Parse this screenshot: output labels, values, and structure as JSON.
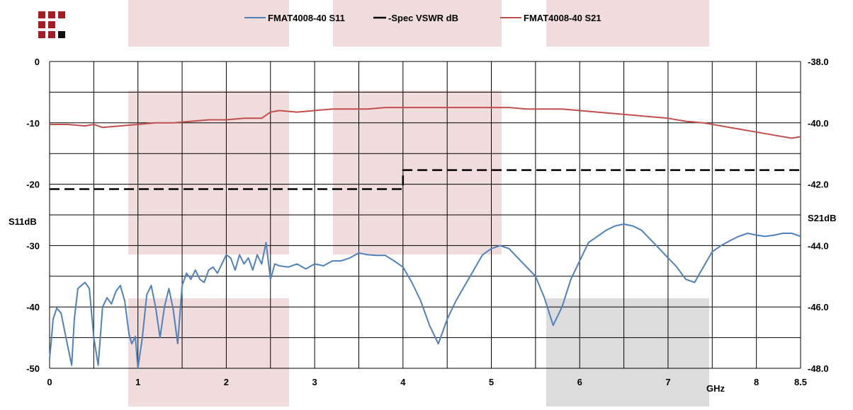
{
  "chart_data": {
    "type": "line",
    "x_unit_label": "GHz",
    "xlim": [
      0,
      8.5
    ],
    "x_ticks": [
      {
        "v": 0,
        "label": "0"
      },
      {
        "v": 1,
        "label": "1"
      },
      {
        "v": 2,
        "label": "2"
      },
      {
        "v": 3,
        "label": "3"
      },
      {
        "v": 4,
        "label": "4"
      },
      {
        "v": 5,
        "label": "5"
      },
      {
        "v": 6,
        "label": "6"
      },
      {
        "v": 7,
        "label": "7"
      },
      {
        "v": 8,
        "label": "8"
      },
      {
        "v": 8.5,
        "label": "8.5"
      }
    ],
    "x_grid_step": 0.5,
    "grid": true,
    "left_axis": {
      "label": "S11dB",
      "ylim": [
        -50,
        0
      ],
      "ticks": [
        {
          "v": 0,
          "label": "0"
        },
        {
          "v": -10,
          "label": "-10"
        },
        {
          "v": -20,
          "label": "-20"
        },
        {
          "v": -30,
          "label": "-30"
        },
        {
          "v": -40,
          "label": "-40"
        },
        {
          "v": -50,
          "label": "-50"
        }
      ],
      "grid_step": 5
    },
    "right_axis": {
      "label": "S21dB",
      "ylim": [
        -48,
        -38
      ],
      "ticks": [
        {
          "v": -38,
          "label": "-38.0"
        },
        {
          "v": -40,
          "label": "-40.0"
        },
        {
          "v": -42,
          "label": "-42.0"
        },
        {
          "v": -44,
          "label": "-44.0"
        },
        {
          "v": -46,
          "label": "-46.0"
        },
        {
          "v": -48,
          "label": "-48.0"
        }
      ]
    },
    "legend_position": "top-center",
    "series": [
      {
        "name": "FMAT4008-40 S11",
        "color": "#4f81bd",
        "axis": "left",
        "width": 2,
        "x": [
          0,
          0.04,
          0.08,
          0.13,
          0.2,
          0.25,
          0.28,
          0.32,
          0.36,
          0.4,
          0.45,
          0.5,
          0.55,
          0.6,
          0.65,
          0.7,
          0.75,
          0.8,
          0.85,
          0.9,
          0.93,
          0.97,
          1.0,
          1.05,
          1.1,
          1.15,
          1.2,
          1.25,
          1.3,
          1.35,
          1.4,
          1.45,
          1.5,
          1.55,
          1.6,
          1.65,
          1.7,
          1.75,
          1.8,
          1.85,
          1.9,
          1.95,
          2.0,
          2.05,
          2.1,
          2.15,
          2.2,
          2.25,
          2.3,
          2.35,
          2.4,
          2.45,
          2.5,
          2.55,
          2.6,
          2.7,
          2.8,
          2.9,
          3.0,
          3.1,
          3.2,
          3.3,
          3.4,
          3.5,
          3.6,
          3.7,
          3.8,
          3.9,
          4.0,
          4.1,
          4.2,
          4.3,
          4.4,
          4.5,
          4.6,
          4.7,
          4.8,
          4.9,
          5.0,
          5.1,
          5.2,
          5.3,
          5.4,
          5.5,
          5.6,
          5.7,
          5.8,
          5.9,
          6.0,
          6.1,
          6.2,
          6.3,
          6.4,
          6.5,
          6.6,
          6.7,
          6.8,
          6.9,
          7.0,
          7.1,
          7.2,
          7.3,
          7.4,
          7.5,
          7.6,
          7.7,
          7.8,
          7.9,
          8.0,
          8.1,
          8.2,
          8.3,
          8.4,
          8.5
        ],
        "values": [
          -48.5,
          -42.0,
          -40.2,
          -41.0,
          -46.0,
          -49.5,
          -42.0,
          -37.0,
          -36.5,
          -36.0,
          -37.0,
          -45.0,
          -49.5,
          -40.0,
          -38.5,
          -39.5,
          -37.5,
          -36.5,
          -39.0,
          -44.5,
          -46.0,
          -44.8,
          -50.0,
          -45.0,
          -38.0,
          -36.5,
          -40.0,
          -45.0,
          -40.0,
          -37.0,
          -40.5,
          -46.0,
          -36.5,
          -34.5,
          -35.5,
          -34.0,
          -35.5,
          -36.0,
          -34.0,
          -33.5,
          -34.5,
          -33.0,
          -31.5,
          -32.0,
          -34.0,
          -31.5,
          -33.0,
          -32.0,
          -34.0,
          -31.5,
          -33.0,
          -29.5,
          -35.5,
          -33.0,
          -33.3,
          -33.5,
          -33.0,
          -33.8,
          -33.0,
          -33.3,
          -32.5,
          -32.5,
          -32.0,
          -31.2,
          -31.5,
          -31.6,
          -31.6,
          -32.5,
          -33.5,
          -36.0,
          -39.0,
          -43.0,
          -46.0,
          -42.0,
          -39.0,
          -36.5,
          -34.0,
          -31.5,
          -30.5,
          -30.0,
          -30.5,
          -32.0,
          -33.5,
          -35.0,
          -38.5,
          -43.0,
          -40.0,
          -35.5,
          -32.5,
          -29.5,
          -28.5,
          -27.5,
          -26.8,
          -26.5,
          -26.8,
          -27.5,
          -29.0,
          -30.5,
          -32.0,
          -33.5,
          -35.5,
          -36.0,
          -33.5,
          -31.0,
          -30.0,
          -29.2,
          -28.5,
          -28.0,
          -28.3,
          -28.5,
          -28.3,
          -28.0,
          -28.0,
          -28.5
        ]
      },
      {
        "name": "-Spec VSWR dB",
        "color": "#000000",
        "axis": "left",
        "dashed": true,
        "width": 2.5,
        "x": [
          0,
          4.0,
          4.0,
          8.5
        ],
        "values": [
          -20.8,
          -20.8,
          -17.7,
          -17.7
        ]
      },
      {
        "name": "FMAT4008-40 S21",
        "color": "#c0504d",
        "axis": "right",
        "width": 2,
        "x": [
          0,
          0.2,
          0.4,
          0.5,
          0.6,
          0.8,
          1.0,
          1.2,
          1.4,
          1.6,
          1.8,
          2.0,
          2.2,
          2.4,
          2.5,
          2.6,
          2.8,
          3.0,
          3.2,
          3.4,
          3.6,
          3.8,
          4.0,
          4.2,
          4.4,
          4.6,
          4.8,
          5.0,
          5.2,
          5.4,
          5.6,
          5.8,
          6.0,
          6.2,
          6.4,
          6.6,
          6.8,
          7.0,
          7.2,
          7.4,
          7.6,
          7.8,
          8.0,
          8.2,
          8.4,
          8.5
        ],
        "values": [
          -40.05,
          -40.05,
          -40.1,
          -40.05,
          -40.15,
          -40.1,
          -40.05,
          -40.0,
          -40.0,
          -39.95,
          -39.9,
          -39.9,
          -39.85,
          -39.85,
          -39.65,
          -39.6,
          -39.65,
          -39.6,
          -39.55,
          -39.55,
          -39.55,
          -39.5,
          -39.5,
          -39.5,
          -39.5,
          -39.5,
          -39.5,
          -39.5,
          -39.5,
          -39.55,
          -39.55,
          -39.55,
          -39.6,
          -39.65,
          -39.7,
          -39.75,
          -39.8,
          -39.85,
          -39.95,
          -40.0,
          -40.1,
          -40.2,
          -40.3,
          -40.4,
          -40.5,
          -40.45
        ]
      }
    ]
  },
  "colors": {
    "band_pink": "#f0dcdc",
    "band_gray": "#dcdcdc",
    "logo_red": "#a51c24",
    "logo_black": "#111111"
  },
  "icons": {
    "logo": "company-logo-icon"
  }
}
